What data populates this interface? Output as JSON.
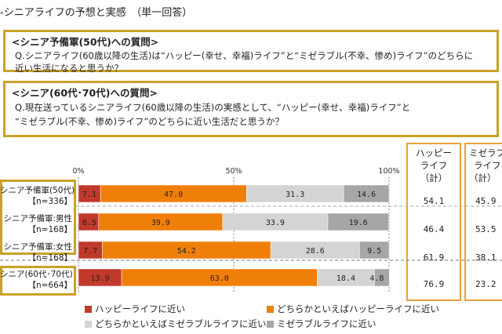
{
  "title": "-シニアライフの予想と実感　（単一回答）",
  "box1": {
    "head": "<シニア予備軍(50代)への質問>",
    "q_line1": "Q.シニアライフ(60歳以降の生活)は“ハッピー(幸せ、幸福)ライフ”と“ミゼラブル(不幸、惨め)ライフ”のどちらに",
    "q_line2": "近い生活になると思うか？"
  },
  "box2": {
    "head": "<シニア(60代･70代)への質問>",
    "q_line1": "Q.現在送っているシニアライフ(60歳以降の生活)の実感として、“ハッピー(幸せ、幸福)ライフ”と",
    "q_line2": "“ミゼラブル(不幸、惨め)ライフ”のどちらに近い生活だと思うか？"
  },
  "panel_happy": {
    "line1": "ハッピー",
    "line2": "ライフ",
    "line3": "（計）"
  },
  "panel_mize": {
    "line1": "ミゼラブ",
    "line2": "ライフ",
    "line3": "（計）"
  },
  "chart_data": {
    "type": "bar",
    "orientation": "horizontal",
    "stacked": true,
    "xlim": [
      0,
      100
    ],
    "tick_labels": [
      "0%",
      "50%",
      "100%"
    ],
    "categories": [
      {
        "line1": "シニア予備軍(50代)",
        "line2": "【n=336】"
      },
      {
        "line1": "シニア予備軍:男性",
        "line2": "【n=168】"
      },
      {
        "line1": "シニア予備軍:女性",
        "line2": "【n=168】"
      },
      {
        "line1": "シニア(60代･70代)",
        "line2": "【n=664】"
      }
    ],
    "series": [
      {
        "name": "ハッピーライフに近い",
        "color": "#c0392b",
        "values": [
          7.1,
          6.5,
          7.7,
          13.9
        ],
        "labels": [
          "7.1",
          "6.5",
          "7.7",
          "13.9"
        ]
      },
      {
        "name": "どちらかといえばハッピーライフに近い",
        "color": "#f07f09",
        "values": [
          47.0,
          39.9,
          54.2,
          63.0
        ],
        "labels": [
          "47.0",
          "39.9",
          "54.2",
          "63.0"
        ]
      },
      {
        "name": "どちらかといえばミゼラブルライフに近い",
        "color": "#d4d4d4",
        "values": [
          31.3,
          33.9,
          28.6,
          18.4
        ],
        "labels": [
          "31.3",
          "33.9",
          "28.6",
          "18.4"
        ]
      },
      {
        "name": "ミゼラブルライフに近い",
        "color": "#a6a6a6",
        "values": [
          14.6,
          19.6,
          9.5,
          4.8
        ],
        "labels": [
          "14.6",
          "19.6",
          "9.5",
          "4.8"
        ]
      }
    ],
    "happy_total": [
      "54.1",
      "46.4",
      "61.9",
      "76.9"
    ],
    "miserable_total": [
      "45.9",
      "53.5",
      "38.1",
      "23.2"
    ]
  }
}
